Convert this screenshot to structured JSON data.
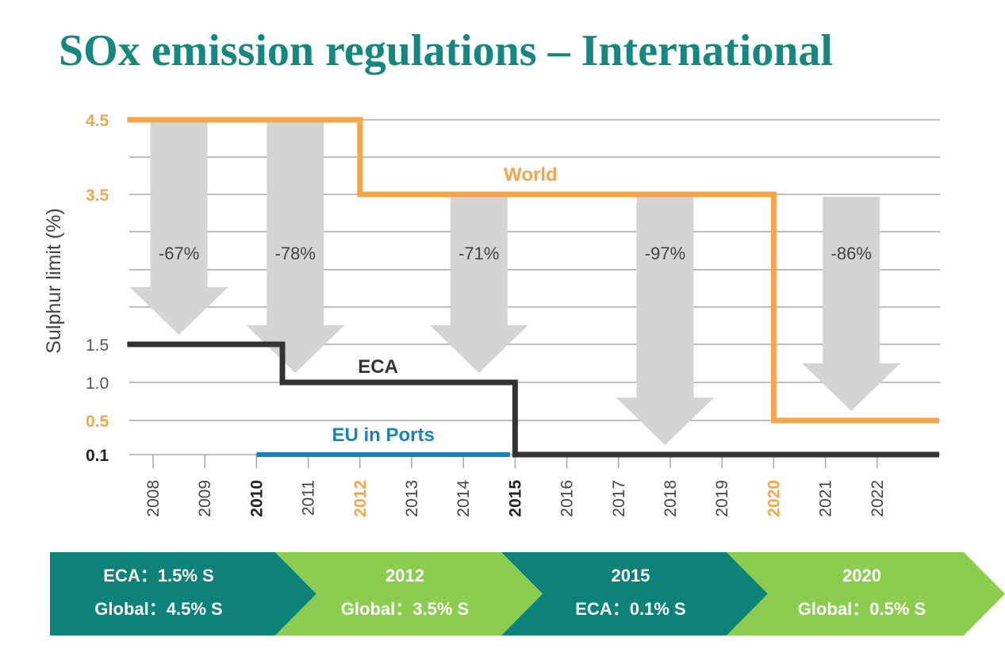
{
  "title": "SOx emission regulations – International",
  "colors": {
    "title": "#14877e",
    "world": "#f5a54a",
    "eca": "#333333",
    "eu": "#1a84b9",
    "arrow": "#d4d4d4",
    "grid": "#a8a8a8",
    "teal": "#0d8278",
    "green": "#8ccd4f"
  },
  "chart_data": {
    "type": "line",
    "title": "",
    "ylabel": "Sulphur limit (%)",
    "xlabel": "",
    "x_ticks": [
      "2008",
      "2009",
      "2010",
      "2011",
      "2012",
      "2013",
      "2014",
      "2015",
      "2016",
      "2017",
      "2018",
      "2019",
      "2020",
      "2021",
      "2022"
    ],
    "highlight_years": {
      "2010": "bold",
      "2012": "orange",
      "2015": "bold",
      "2020": "orange"
    },
    "y_ticks": [
      {
        "value": 4.5,
        "label": "4.5",
        "color": "orange"
      },
      {
        "value": 3.5,
        "label": "3.5",
        "color": "orange"
      },
      {
        "value": 1.5,
        "label": "1.5",
        "color": "gray"
      },
      {
        "value": 1.0,
        "label": "1.0",
        "color": "gray"
      },
      {
        "value": 0.5,
        "label": "0.5",
        "color": "orange"
      },
      {
        "value": 0.1,
        "label": "0.1",
        "color": "dark"
      }
    ],
    "series": [
      {
        "name": "World",
        "color": "#f5a54a",
        "steps": [
          [
            2007.5,
            4.5
          ],
          [
            2012,
            4.5
          ],
          [
            2012,
            3.5
          ],
          [
            2020,
            3.5
          ],
          [
            2020,
            0.5
          ],
          [
            2023.2,
            0.5
          ]
        ]
      },
      {
        "name": "ECA",
        "color": "#333333",
        "steps": [
          [
            2007.5,
            1.5
          ],
          [
            2010.5,
            1.5
          ],
          [
            2010.5,
            1.0
          ],
          [
            2015,
            1.0
          ],
          [
            2015,
            0.1
          ],
          [
            2023.2,
            0.1
          ]
        ]
      },
      {
        "name": "EU in Ports",
        "color": "#1a84b9",
        "steps": [
          [
            2010,
            0.1
          ],
          [
            2014.9,
            0.1
          ]
        ]
      }
    ],
    "reductions": [
      {
        "label": "-67%",
        "x": 2008.5,
        "from": 4.5,
        "to": 1.5
      },
      {
        "label": "-78%",
        "x": 2010.75,
        "from": 4.5,
        "to": 1.0
      },
      {
        "label": "-71%",
        "x": 2014.3,
        "from": 3.5,
        "to": 1.0
      },
      {
        "label": "-97%",
        "x": 2017.9,
        "from": 3.5,
        "to": 0.1
      },
      {
        "label": "-86%",
        "x": 2021.5,
        "from": 3.5,
        "to": 0.5
      }
    ]
  },
  "timeline": [
    {
      "line1": "ECA：1.5% S",
      "line2": "Global：4.5% S",
      "color": "teal"
    },
    {
      "line1": "2012",
      "line2": "Global：3.5% S",
      "color": "green"
    },
    {
      "line1": "2015",
      "line2": "ECA：0.1% S",
      "color": "teal"
    },
    {
      "line1": "2020",
      "line2": "Global：0.5% S",
      "color": "green"
    }
  ]
}
